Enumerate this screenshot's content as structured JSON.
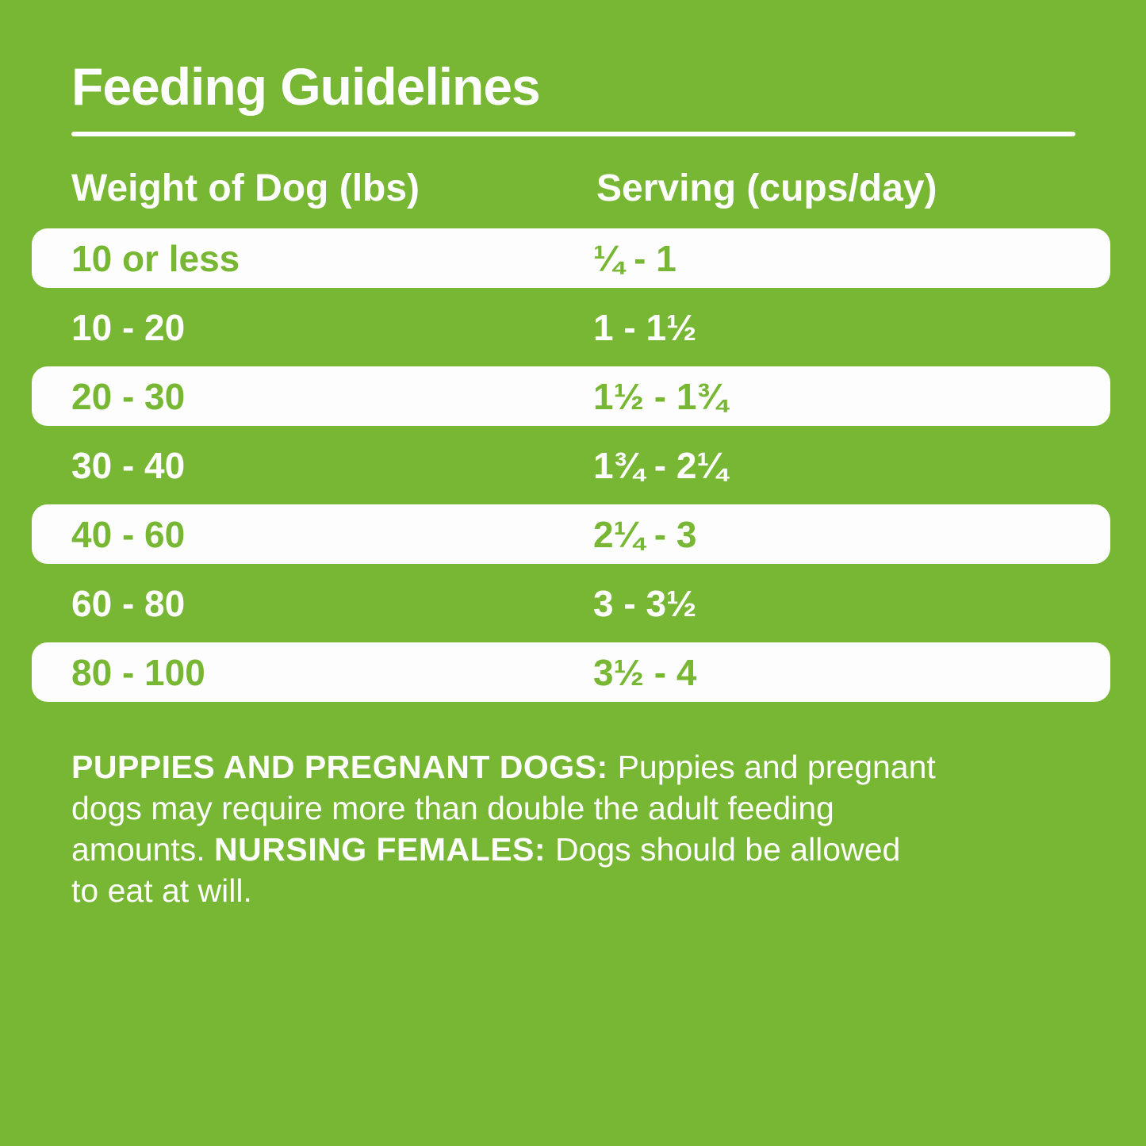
{
  "page": {
    "background_color": "#77B733",
    "row_highlight_color": "#FDFDFD",
    "text_color_on_green": "#FDFDFD",
    "text_color_on_white": "#77B733"
  },
  "header": {
    "title": "Feeding Guidelines"
  },
  "table": {
    "columns": [
      {
        "label": "Weight of Dog (lbs)"
      },
      {
        "label": "Serving (cups/day)"
      }
    ],
    "rows": [
      {
        "weight": "10 or less",
        "serving": "¼ - 1",
        "highlighted": true
      },
      {
        "weight": "10 - 20",
        "serving": "1 - 1½",
        "highlighted": false
      },
      {
        "weight": "20 - 30",
        "serving": "1½ - 1¾",
        "highlighted": true
      },
      {
        "weight": "30 - 40",
        "serving": "1¾ - 2¼",
        "highlighted": false
      },
      {
        "weight": "40 - 60",
        "serving": "2¼ - 3",
        "highlighted": true
      },
      {
        "weight": "60 - 80",
        "serving": "3 - 3½",
        "highlighted": false
      },
      {
        "weight": "80 - 100",
        "serving": "3½ - 4",
        "highlighted": true
      }
    ]
  },
  "note": {
    "lines": [
      {
        "segments": [
          {
            "text": "PUPPIES AND PREGNANT DOGS: ",
            "bold": true
          },
          {
            "text": "Puppies and pregnant",
            "bold": false
          }
        ]
      },
      {
        "segments": [
          {
            "text": "dogs may require more than double the adult feeding",
            "bold": false
          }
        ]
      },
      {
        "segments": [
          {
            "text": "amounts. ",
            "bold": false
          },
          {
            "text": "NURSING FEMALES: ",
            "bold": true
          },
          {
            "text": "Dogs should be allowed",
            "bold": false
          }
        ]
      },
      {
        "segments": [
          {
            "text": "to eat at will.",
            "bold": false
          }
        ]
      }
    ]
  }
}
